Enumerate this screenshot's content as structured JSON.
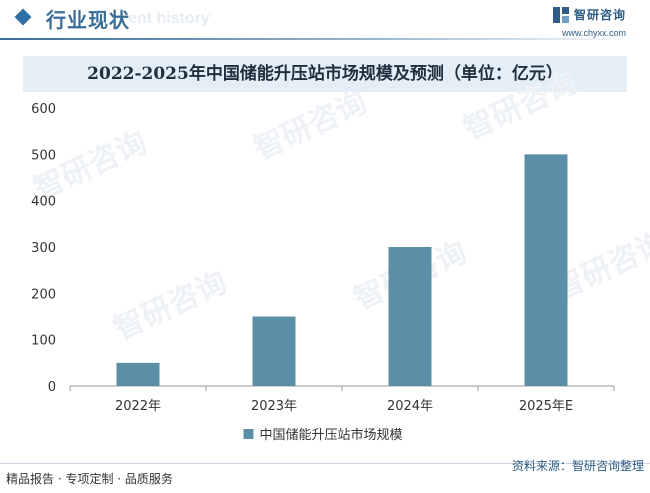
{
  "header": {
    "title": "行业现状",
    "watermark_text": "ent history"
  },
  "logo": {
    "name": "智研咨询",
    "url": "www.chyxx.com",
    "watermark_text": "智研咨询"
  },
  "footer": {
    "left_text": "精品报告 · 专项定制 · 品质服务",
    "right_text": "资料来源：智研咨询整理"
  },
  "colors": {
    "bar": "#5b8fa8",
    "title_bar_bg": "#e3eef6",
    "header_accent": "#3a6d97"
  },
  "chart_data": {
    "type": "bar",
    "title": "2022-2025年中国储能升压站市场规模及预测（单位：亿元）",
    "categories": [
      "2022年",
      "2023年",
      "2024年",
      "2025年E"
    ],
    "series": [
      {
        "name": "中国储能升压站市场规模",
        "values": [
          50,
          150,
          300,
          500
        ]
      }
    ],
    "yticks": [
      0,
      100,
      200,
      300,
      400,
      500,
      600
    ],
    "ylim": [
      0,
      600
    ],
    "grid": false,
    "legend_position": "bottom"
  }
}
